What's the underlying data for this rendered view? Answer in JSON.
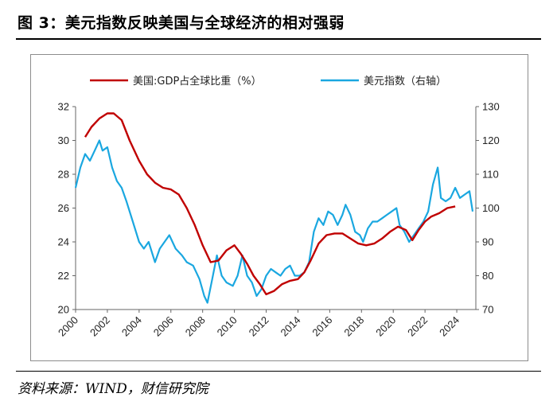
{
  "title": "图 3：美元指数反映美国与全球经济的相对强弱",
  "source": "资料来源：WIND，财信研究院",
  "chart_data": {
    "type": "line",
    "title": "",
    "legend_position": "top",
    "series": [
      {
        "name": "美国:GDP占全球比重（%）",
        "axis": "left",
        "color": "#c00000",
        "x": [
          2000.6,
          2001.0,
          2001.5,
          2002.0,
          2002.4,
          2002.9,
          2003.4,
          2004.0,
          2004.5,
          2005.0,
          2005.5,
          2006.0,
          2006.5,
          2007.0,
          2007.5,
          2008.0,
          2008.5,
          2009.0,
          2009.5,
          2010.0,
          2010.4,
          2010.8,
          2011.2,
          2011.6,
          2012.0,
          2012.5,
          2013.0,
          2013.5,
          2014.0,
          2014.4,
          2014.8,
          2015.3,
          2015.8,
          2016.3,
          2016.8,
          2017.3,
          2017.8,
          2018.3,
          2018.8,
          2019.3,
          2019.8,
          2020.3,
          2020.8,
          2021.2,
          2021.6,
          2022.0,
          2022.4,
          2022.9,
          2023.4,
          2023.9
        ],
        "values": [
          30.2,
          30.8,
          31.3,
          31.6,
          31.6,
          31.2,
          30.0,
          28.8,
          28.0,
          27.5,
          27.2,
          27.1,
          26.8,
          26.0,
          25.0,
          23.8,
          22.8,
          22.9,
          23.5,
          23.8,
          23.3,
          22.7,
          22.0,
          21.5,
          20.9,
          21.1,
          21.5,
          21.7,
          21.8,
          22.2,
          22.9,
          23.9,
          24.4,
          24.5,
          24.5,
          24.2,
          23.9,
          23.8,
          23.9,
          24.2,
          24.6,
          24.9,
          24.7,
          24.1,
          24.7,
          25.2,
          25.5,
          25.7,
          26.0,
          26.1
        ],
        "ylim": [
          20,
          32
        ]
      },
      {
        "name": "美元指数（右轴）",
        "axis": "right",
        "color": "#1aa7e0",
        "x": [
          2000.0,
          2000.3,
          2000.6,
          2000.9,
          2001.2,
          2001.5,
          2001.7,
          2002.0,
          2002.3,
          2002.6,
          2002.9,
          2003.2,
          2003.6,
          2004.0,
          2004.3,
          2004.6,
          2005.0,
          2005.3,
          2005.6,
          2005.9,
          2006.3,
          2006.7,
          2007.0,
          2007.4,
          2007.8,
          2008.1,
          2008.3,
          2008.6,
          2008.9,
          2009.2,
          2009.5,
          2009.9,
          2010.2,
          2010.5,
          2010.8,
          2011.1,
          2011.4,
          2011.7,
          2012.0,
          2012.3,
          2012.6,
          2012.9,
          2013.2,
          2013.5,
          2013.8,
          2014.1,
          2014.4,
          2014.7,
          2015.0,
          2015.3,
          2015.6,
          2015.9,
          2016.2,
          2016.5,
          2016.8,
          2017.0,
          2017.3,
          2017.6,
          2017.9,
          2018.1,
          2018.4,
          2018.7,
          2019.0,
          2019.3,
          2019.6,
          2019.9,
          2020.2,
          2020.4,
          2020.7,
          2021.0,
          2021.3,
          2021.6,
          2021.9,
          2022.2,
          2022.5,
          2022.8,
          2023.0,
          2023.3,
          2023.6,
          2023.9,
          2024.2,
          2024.5,
          2024.8,
          2025.0
        ],
        "values": [
          106,
          112,
          116,
          114,
          117,
          120,
          117,
          118,
          112,
          108,
          106,
          102,
          96,
          90,
          88,
          90,
          84,
          88,
          90,
          92,
          88,
          86,
          84,
          83,
          79,
          74,
          72,
          79,
          86,
          80,
          78,
          77,
          80,
          86,
          80,
          78,
          74,
          76,
          80,
          82,
          81,
          80,
          82,
          83,
          80,
          80,
          81,
          84,
          93,
          97,
          95,
          99,
          98,
          95,
          98,
          101,
          98,
          93,
          92,
          90,
          94,
          96,
          96,
          97,
          98,
          99,
          100,
          95,
          93,
          90,
          92,
          94,
          96,
          99,
          107,
          112,
          103,
          102,
          103,
          106,
          103,
          104,
          105,
          99
        ],
        "ylim": [
          70,
          130
        ]
      }
    ],
    "x_ticks": [
      "2000",
      "2002",
      "2004",
      "2006",
      "2008",
      "2010",
      "2012",
      "2014",
      "2016",
      "2018",
      "2020",
      "2022",
      "2024"
    ],
    "y_left_ticks": [
      20,
      22,
      24,
      26,
      28,
      30,
      32
    ],
    "y_right_ticks": [
      70,
      80,
      90,
      100,
      110,
      120,
      130
    ],
    "xlim": [
      2000,
      2025.2
    ],
    "grid": false
  }
}
